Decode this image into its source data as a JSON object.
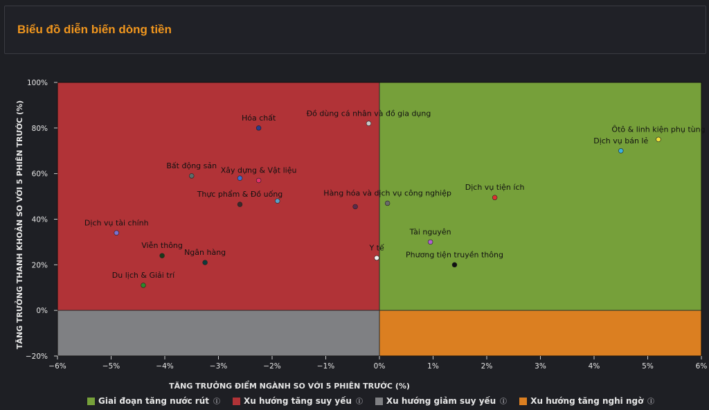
{
  "header": {
    "title": "Biểu đồ diễn biến dòng tiền"
  },
  "chart_data": {
    "type": "scatter",
    "xlabel": "TĂNG TRƯỞNG ĐIỂM NGÀNH SO VỚI 5 PHIÊN TRƯỚC (%)",
    "ylabel": "TĂNG TRƯỞNG THANH KHOẢN SO VỚI 5 PHIÊN TRƯỚC (%)",
    "xlim": [
      -6,
      6
    ],
    "ylim": [
      -20,
      100
    ],
    "x_ticks": [
      -6,
      -5,
      -4,
      -3,
      -2,
      -1,
      0,
      1,
      2,
      3,
      4,
      5,
      6
    ],
    "y_ticks": [
      -20,
      0,
      20,
      40,
      60,
      80,
      100
    ],
    "quadrants": [
      {
        "name": "Giai đoạn tăng nước rút",
        "x": "positive",
        "y": "positive",
        "color": "#76a03a"
      },
      {
        "name": "Xu hướng tăng suy yếu",
        "x": "negative",
        "y": "positive",
        "color": "#b13337"
      },
      {
        "name": "Xu hướng giảm suy yếu",
        "x": "negative",
        "y": "negative",
        "color": "#7f8083"
      },
      {
        "name": "Xu hướng tăng nghi ngờ",
        "x": "positive",
        "y": "negative",
        "color": "#db7f21"
      }
    ],
    "points": [
      {
        "label": "Hóa chất",
        "x": -2.25,
        "y": 80,
        "color": "#2a3a8a"
      },
      {
        "label": "Đồ dùng cá nhân và đồ gia dụng",
        "x": -0.2,
        "y": 82,
        "color": "#c8c8c8"
      },
      {
        "label": "Ôtô & linh kiện phụ tùng",
        "x": 5.2,
        "y": 75,
        "color": "#f2e23c"
      },
      {
        "label": "Dịch vụ bán lẻ",
        "x": 4.5,
        "y": 70,
        "color": "#3ab0e0"
      },
      {
        "label": "Bất động sản",
        "x": -3.5,
        "y": 59,
        "color": "#5a6e6a"
      },
      {
        "label": "Xây dựng & Vật liệu",
        "x": -2.6,
        "y": 58,
        "color": "#3b6fd1"
      },
      {
        "label": "Xây dựng & Vật liệu (2)",
        "x": -2.25,
        "y": 57,
        "color": "#e0306a"
      },
      {
        "label": "Thực phẩm & Đồ uống",
        "x": -2.6,
        "y": 46.5,
        "color": "#3a2a2a"
      },
      {
        "label": "Thực phẩm & Đồ uống (2)",
        "x": -1.9,
        "y": 48,
        "color": "#5aa0c8"
      },
      {
        "label": "Hàng hóa và dịch vụ công nghiệp",
        "x": -0.45,
        "y": 45.5,
        "color": "#5a2a4a"
      },
      {
        "label": "Hàng hóa và dịch vụ công nghiệp (2)",
        "x": 0.15,
        "y": 47,
        "color": "#6a6a6a"
      },
      {
        "label": "Dịch vụ tiện ích",
        "x": 2.15,
        "y": 49.5,
        "color": "#e03030"
      },
      {
        "label": "Dịch vụ tài chính",
        "x": -4.9,
        "y": 34,
        "color": "#7a70d0"
      },
      {
        "label": "Tài nguyên",
        "x": 0.95,
        "y": 30,
        "color": "#b060d0"
      },
      {
        "label": "Viễn thông",
        "x": -4.05,
        "y": 24,
        "color": "#1a3a1a"
      },
      {
        "label": "Ngân hàng",
        "x": -3.25,
        "y": 21,
        "color": "#0f3a3a"
      },
      {
        "label": "Y tế",
        "x": -0.05,
        "y": 23,
        "color": "#f0f0f0"
      },
      {
        "label": "Phương tiện truyền thông",
        "x": 1.4,
        "y": 20,
        "color": "#111111"
      },
      {
        "label": "Du lịch & Giải trí",
        "x": -4.4,
        "y": 11,
        "color": "#2a8a2a"
      }
    ],
    "point_labels": [
      {
        "text": "Hóa chất",
        "x": -2.25,
        "y": 80
      },
      {
        "text": "Đồ dùng cá nhân và đồ gia dụng",
        "x": -0.2,
        "y": 82
      },
      {
        "text": "Ôtô & linh kiện phụ tùng",
        "x": 5.2,
        "y": 75
      },
      {
        "text": "Dịch vụ bán lẻ",
        "x": 4.5,
        "y": 70
      },
      {
        "text": "Bất động sản",
        "x": -3.5,
        "y": 59
      },
      {
        "text": "Xây dựng & Vật liệu",
        "x": -2.25,
        "y": 57
      },
      {
        "text": "Thực phẩm & Đồ uống",
        "x": -2.6,
        "y": 46.5
      },
      {
        "text": "Hàng hóa và dịch vụ công nghiệp",
        "x": 0.15,
        "y": 47
      },
      {
        "text": "Dịch vụ tiện ích",
        "x": 2.15,
        "y": 49.5
      },
      {
        "text": "Dịch vụ tài chính",
        "x": -4.9,
        "y": 34
      },
      {
        "text": "Tài nguyên",
        "x": 0.95,
        "y": 30
      },
      {
        "text": "Viễn thông",
        "x": -4.05,
        "y": 24
      },
      {
        "text": "Ngân hàng",
        "x": -3.25,
        "y": 21
      },
      {
        "text": "Y tế",
        "x": -0.05,
        "y": 23
      },
      {
        "text": "Phương tiện truyền thông",
        "x": 1.4,
        "y": 20
      },
      {
        "text": "Du lịch & Giải trí",
        "x": -4.4,
        "y": 11
      }
    ],
    "legend": [
      {
        "label": "Giai đoạn tăng nước rút",
        "color": "#76a03a",
        "info_icon": "info-icon"
      },
      {
        "label": "Xu hướng tăng suy yếu",
        "color": "#b13337",
        "info_icon": "info-icon"
      },
      {
        "label": "Xu hướng giảm suy yếu",
        "color": "#7f8083",
        "info_icon": "info-icon"
      },
      {
        "label": "Xu hướng tăng nghi ngờ",
        "color": "#db7f21",
        "info_icon": "info-icon"
      }
    ],
    "legend_position": "bottom",
    "grid": false
  }
}
